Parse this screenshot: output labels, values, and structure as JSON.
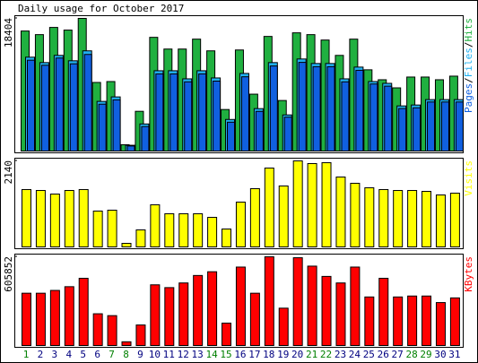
{
  "chart_data": [
    {
      "type": "bar",
      "title": "Daily usage for October 2017",
      "ylim": [
        0,
        18404
      ],
      "yticks": [
        18404
      ],
      "legend_separator": "/",
      "series": [
        {
          "name": "Hits",
          "color": "#20b040",
          "values": [
            16650,
            16150,
            17150,
            16780,
            18404,
            9515,
            9640,
            876,
            5510,
            15775,
            14150,
            14150,
            15525,
            13900,
            5760,
            14020,
            7890,
            15900,
            7010,
            16400,
            16150,
            15400,
            13270,
            15525,
            11270,
            9890,
            8765,
            10265,
            10265,
            9890,
            10390
          ]
        },
        {
          "name": "Files",
          "color": "#20b0f0",
          "values": [
            13020,
            12270,
            13270,
            12520,
            13900,
            6885,
            7510,
            800,
            3755,
            11140,
            11140,
            10015,
            11140,
            10140,
            4380,
            10765,
            5885,
            12270,
            5010,
            12770,
            12145,
            12145,
            10015,
            11645,
            9640,
            9390,
            6260,
            6385,
            7135,
            7135,
            7135
          ]
        },
        {
          "name": "Pages",
          "color": "#1060e0",
          "values": [
            12600,
            11900,
            12900,
            12100,
            13400,
            6500,
            7100,
            700,
            3400,
            10700,
            10700,
            9600,
            10700,
            9700,
            4000,
            10300,
            5500,
            11800,
            4700,
            12300,
            11700,
            11700,
            9600,
            11200,
            9300,
            9000,
            5900,
            6000,
            6800,
            6800,
            6800
          ]
        }
      ]
    },
    {
      "type": "bar",
      "ylim": [
        0,
        2140
      ],
      "yticks": [
        2140
      ],
      "series": [
        {
          "name": "Visits",
          "color": "#ffff00",
          "values": [
            1427,
            1404,
            1315,
            1404,
            1427,
            892,
            914,
            89,
            424,
            1048,
            825,
            825,
            825,
            736,
            446,
            1115,
            1449,
            1962,
            1516,
            2140,
            2073,
            2095,
            1739,
            1583,
            1471,
            1427,
            1404,
            1404,
            1382,
            1293,
            1337
          ]
        }
      ]
    },
    {
      "type": "bar",
      "ylim": [
        0,
        605852
      ],
      "yticks": [
        605852
      ],
      "categories": [
        "1",
        "2",
        "3",
        "4",
        "5",
        "6",
        "7",
        "8",
        "9",
        "10",
        "11",
        "12",
        "13",
        "14",
        "15",
        "16",
        "17",
        "18",
        "19",
        "20",
        "21",
        "22",
        "23",
        "24",
        "25",
        "26",
        "27",
        "28",
        "29",
        "30",
        "31"
      ],
      "label_colors": [
        "#008000",
        "#000080",
        "#000080",
        "#000080",
        "#000080",
        "#000080",
        "#008000",
        "#008000",
        "#000080",
        "#000080",
        "#000080",
        "#000080",
        "#000080",
        "#008000",
        "#008000",
        "#000080",
        "#000080",
        "#000080",
        "#000080",
        "#000080",
        "#008000",
        "#008000",
        "#000080",
        "#000080",
        "#000080",
        "#000080",
        "#000080",
        "#008000",
        "#008000",
        "#000080",
        "#000080"
      ],
      "series": [
        {
          "name": "KBytes",
          "color": "#ff0000",
          "values": [
            357110,
            357110,
            376240,
            401750,
            459150,
            216820,
            204060,
            25510,
            140290,
            414500,
            395380,
            427260,
            478280,
            503780,
            153050,
            535670,
            357110,
            605852,
            255080,
            599450,
            542050,
            471900,
            427260,
            535670,
            331600,
            459150,
            331600,
            337980,
            337980,
            293340,
            325230
          ]
        }
      ]
    }
  ]
}
